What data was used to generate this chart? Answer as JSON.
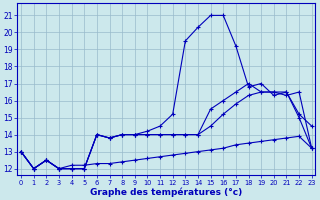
{
  "xlabel": "Graphe des températures (°c)",
  "x_ticks": [
    0,
    1,
    2,
    3,
    4,
    5,
    6,
    7,
    8,
    9,
    10,
    11,
    12,
    13,
    14,
    15,
    16,
    17,
    18,
    19,
    20,
    21,
    22,
    23
  ],
  "y_ticks": [
    12,
    13,
    14,
    15,
    16,
    17,
    18,
    19,
    20,
    21
  ],
  "ylim": [
    11.6,
    21.7
  ],
  "xlim": [
    -0.3,
    23.3
  ],
  "background_color": "#cce8ec",
  "line_color": "#0000bb",
  "grid_color": "#99bbcc",
  "series": [
    [
      13,
      12,
      12.5,
      12,
      12,
      12,
      14,
      13.8,
      14,
      14,
      14.2,
      14.5,
      15.2,
      19.5,
      20.3,
      21,
      21,
      19.2,
      16.8,
      17,
      16.3,
      16.5,
      15.2,
      14.5
    ],
    [
      13,
      12,
      12.5,
      12,
      12,
      12,
      14,
      13.8,
      14,
      14,
      14,
      14,
      14,
      14,
      14,
      15.5,
      16,
      16.5,
      17,
      16.5,
      16.5,
      16.5,
      15,
      13.2
    ],
    [
      13,
      12,
      12.5,
      12,
      12,
      12,
      14,
      13.8,
      14,
      14,
      14,
      14,
      14,
      14,
      14,
      14.5,
      15.2,
      15.8,
      16.3,
      16.5,
      16.5,
      16.3,
      16.5,
      13.2
    ],
    [
      13,
      12,
      12.5,
      12,
      12.2,
      12.2,
      12.3,
      12.3,
      12.4,
      12.5,
      12.6,
      12.7,
      12.8,
      12.9,
      13.0,
      13.1,
      13.2,
      13.4,
      13.5,
      13.6,
      13.7,
      13.8,
      13.9,
      13.2
    ]
  ]
}
